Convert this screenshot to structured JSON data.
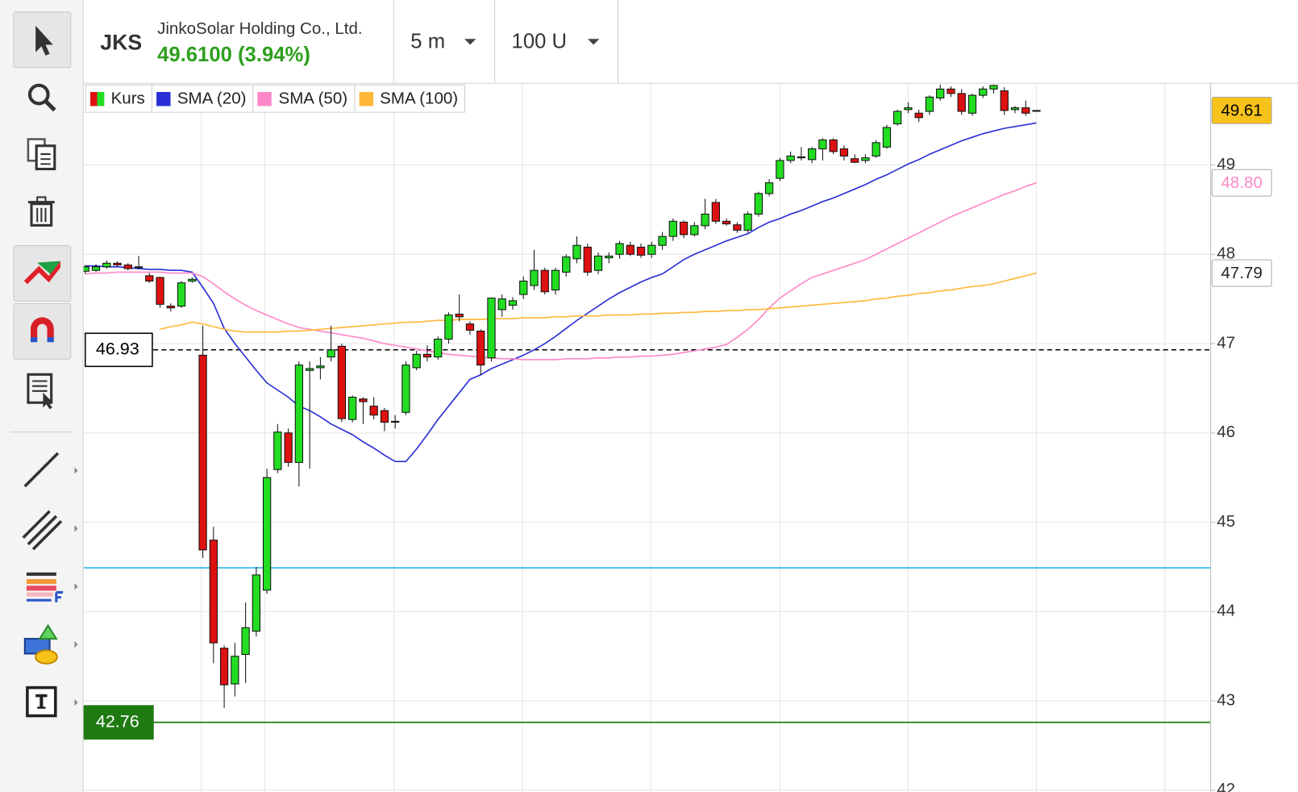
{
  "header": {
    "symbol": "JKS",
    "name": "JinkoSolar Holding Co., Ltd.",
    "quote": "49.6100 (3.94%)",
    "interval": "5 m",
    "range": "100 U"
  },
  "chart_data": {
    "type": "candlestick",
    "ylim": [
      41.98,
      49.91
    ],
    "yticks": [
      42,
      43,
      44,
      45,
      46,
      47,
      48,
      49
    ],
    "grid": true,
    "legend": "top-left",
    "ohlc": {
      "name": "Kurs",
      "up_color": "#22dd22",
      "down_color": "#dd1111",
      "open": [
        47.81,
        47.82,
        47.86,
        47.9,
        47.88,
        47.85,
        47.76,
        47.74,
        47.42,
        47.42,
        47.7,
        46.87,
        44.8,
        43.59,
        43.19,
        43.52,
        43.78,
        44.24,
        45.59,
        46.0,
        45.67,
        46.7,
        46.73,
        46.85,
        46.97,
        46.15,
        46.38,
        46.3,
        46.25,
        46.12,
        46.23,
        46.73,
        46.88,
        46.85,
        47.05,
        47.33,
        47.22,
        47.14,
        46.84,
        47.38,
        47.43,
        47.55,
        47.65,
        47.82,
        47.6,
        47.8,
        47.95,
        48.08,
        47.82,
        47.96,
        48.0,
        48.1,
        48.08,
        48.0,
        48.1,
        48.2,
        48.36,
        48.22,
        48.32,
        48.58,
        48.37,
        48.33,
        48.27,
        48.45,
        48.68,
        48.85,
        49.05,
        49.08,
        49.06,
        49.18,
        49.28,
        49.18,
        49.07,
        49.05,
        49.1,
        49.2,
        49.46,
        49.62,
        49.58,
        49.6,
        49.75,
        49.85,
        49.8,
        49.58,
        49.78,
        49.85,
        49.83,
        49.62,
        49.64,
        49.61
      ],
      "high": [
        47.88,
        47.89,
        47.93,
        47.92,
        47.9,
        47.98,
        47.79,
        47.75,
        47.45,
        47.7,
        47.74,
        47.2,
        44.95,
        43.62,
        43.65,
        44.1,
        44.5,
        45.6,
        46.1,
        46.05,
        46.8,
        46.8,
        46.85,
        47.2,
        47.0,
        46.42,
        46.4,
        46.4,
        46.28,
        46.2,
        46.8,
        46.92,
        46.98,
        47.08,
        47.35,
        47.55,
        47.25,
        47.16,
        47.51,
        47.55,
        47.52,
        47.75,
        48.05,
        47.85,
        47.85,
        48.0,
        48.2,
        48.12,
        48.02,
        48.02,
        48.15,
        48.14,
        48.12,
        48.14,
        48.25,
        48.4,
        48.38,
        48.36,
        48.62,
        48.62,
        48.4,
        48.36,
        48.48,
        48.7,
        48.84,
        49.08,
        49.15,
        49.2,
        49.2,
        49.3,
        49.3,
        49.22,
        49.12,
        49.12,
        49.28,
        49.45,
        49.62,
        49.7,
        49.62,
        49.78,
        49.9,
        49.88,
        49.85,
        49.8,
        49.88,
        49.9,
        49.87,
        49.66,
        49.72,
        49.61
      ],
      "low": [
        47.78,
        47.8,
        47.84,
        47.86,
        47.82,
        47.83,
        47.68,
        47.4,
        47.36,
        47.4,
        47.68,
        44.6,
        43.42,
        42.92,
        43.05,
        43.2,
        43.72,
        44.2,
        45.55,
        45.62,
        45.4,
        45.6,
        46.6,
        46.8,
        46.12,
        46.12,
        46.1,
        46.15,
        46.02,
        46.05,
        46.2,
        46.7,
        46.8,
        46.82,
        47.0,
        47.25,
        47.1,
        46.65,
        46.8,
        47.3,
        47.38,
        47.5,
        47.6,
        47.55,
        47.55,
        47.75,
        47.9,
        47.76,
        47.78,
        47.9,
        47.95,
        47.98,
        47.96,
        47.96,
        48.05,
        48.15,
        48.18,
        48.2,
        48.28,
        48.34,
        48.32,
        48.24,
        48.24,
        48.42,
        48.65,
        48.82,
        49.02,
        49.05,
        49.02,
        49.05,
        49.12,
        49.05,
        49.02,
        49.02,
        49.08,
        49.18,
        49.44,
        49.58,
        49.48,
        49.56,
        49.72,
        49.76,
        49.56,
        49.55,
        49.75,
        49.8,
        49.56,
        49.58,
        49.55,
        49.61
      ],
      "close": [
        47.86,
        47.86,
        47.9,
        47.88,
        47.84,
        47.86,
        47.7,
        47.44,
        47.4,
        47.68,
        47.72,
        44.69,
        43.65,
        43.18,
        43.5,
        43.82,
        44.41,
        45.5,
        46.01,
        45.67,
        46.76,
        46.72,
        46.75,
        46.93,
        46.16,
        46.4,
        46.35,
        46.2,
        46.12,
        46.13,
        46.76,
        46.88,
        46.85,
        47.05,
        47.32,
        47.3,
        47.15,
        46.76,
        47.51,
        47.5,
        47.48,
        47.7,
        47.82,
        47.58,
        47.82,
        47.97,
        48.1,
        47.8,
        47.98,
        47.98,
        48.12,
        48.0,
        47.99,
        48.1,
        48.2,
        48.37,
        48.22,
        48.32,
        48.45,
        48.37,
        48.34,
        48.27,
        48.45,
        48.68,
        48.8,
        49.05,
        49.1,
        49.09,
        49.18,
        49.28,
        49.15,
        49.1,
        49.03,
        49.08,
        49.25,
        49.42,
        49.6,
        49.64,
        49.53,
        49.76,
        49.85,
        49.8,
        49.6,
        49.78,
        49.85,
        49.89,
        49.61,
        49.64,
        49.58,
        49.61
      ]
    },
    "series": [
      {
        "name": "SMA (20)",
        "color": "#2a2fd6",
        "values": [
          47.87,
          47.87,
          47.86,
          47.86,
          47.85,
          47.84,
          47.83,
          47.83,
          47.82,
          47.82,
          47.8,
          47.63,
          47.45,
          47.17,
          47.0,
          46.85,
          46.7,
          46.56,
          46.48,
          46.4,
          46.3,
          46.25,
          46.18,
          46.1,
          46.04,
          45.98,
          45.9,
          45.83,
          45.75,
          45.68,
          45.68,
          45.82,
          45.98,
          46.15,
          46.3,
          46.45,
          46.6,
          46.65,
          46.72,
          46.77,
          46.82,
          46.87,
          46.93,
          47.0,
          47.08,
          47.17,
          47.26,
          47.34,
          47.42,
          47.5,
          47.57,
          47.63,
          47.69,
          47.74,
          47.78,
          47.86,
          47.94,
          48.0,
          48.05,
          48.1,
          48.15,
          48.19,
          48.23,
          48.3,
          48.36,
          48.4,
          48.45,
          48.49,
          48.54,
          48.59,
          48.63,
          48.68,
          48.73,
          48.78,
          48.84,
          48.89,
          48.95,
          49.01,
          49.06,
          49.12,
          49.17,
          49.22,
          49.27,
          49.31,
          49.35,
          49.38,
          49.41,
          49.43,
          49.45,
          49.47
        ]
      },
      {
        "name": "SMA (50)",
        "color": "#ff88c8",
        "values": [
          47.78,
          47.79,
          47.79,
          47.8,
          47.8,
          47.8,
          47.8,
          47.8,
          47.79,
          47.79,
          47.79,
          47.75,
          47.67,
          47.58,
          47.5,
          47.43,
          47.37,
          47.32,
          47.27,
          47.22,
          47.18,
          47.16,
          47.14,
          47.12,
          47.1,
          47.08,
          47.06,
          47.03,
          47.0,
          46.98,
          46.96,
          46.94,
          46.92,
          46.9,
          46.88,
          46.87,
          46.86,
          46.85,
          46.84,
          46.83,
          46.83,
          46.82,
          46.82,
          46.82,
          46.82,
          46.83,
          46.83,
          46.83,
          46.84,
          46.84,
          46.85,
          46.85,
          46.86,
          46.86,
          46.87,
          46.88,
          46.9,
          46.92,
          46.94,
          46.96,
          46.99,
          47.07,
          47.16,
          47.27,
          47.4,
          47.51,
          47.59,
          47.67,
          47.74,
          47.78,
          47.82,
          47.86,
          47.9,
          47.94,
          48.0,
          48.06,
          48.12,
          48.18,
          48.24,
          48.3,
          48.36,
          48.42,
          48.47,
          48.52,
          48.57,
          48.62,
          48.67,
          48.71,
          48.76,
          48.8
        ]
      },
      {
        "name": "SMA (100)",
        "color": "#ffb838",
        "values": [
          null,
          null,
          null,
          null,
          null,
          null,
          null,
          47.16,
          47.19,
          47.21,
          47.24,
          47.22,
          47.19,
          47.16,
          47.14,
          47.13,
          47.13,
          47.13,
          47.13,
          47.14,
          47.14,
          47.15,
          47.16,
          47.17,
          47.18,
          47.19,
          47.2,
          47.21,
          47.22,
          47.23,
          47.24,
          47.24,
          47.25,
          47.26,
          47.26,
          47.27,
          47.27,
          47.27,
          47.28,
          47.28,
          47.28,
          47.29,
          47.29,
          47.29,
          47.3,
          47.3,
          47.31,
          47.31,
          47.31,
          47.32,
          47.32,
          47.32,
          47.33,
          47.33,
          47.34,
          47.34,
          47.35,
          47.35,
          47.36,
          47.36,
          47.37,
          47.37,
          47.38,
          47.38,
          47.39,
          47.4,
          47.41,
          47.42,
          47.43,
          47.44,
          47.45,
          47.46,
          47.47,
          47.48,
          47.5,
          47.51,
          47.53,
          47.54,
          47.56,
          47.57,
          47.59,
          47.6,
          47.62,
          47.64,
          47.65,
          47.67,
          47.7,
          47.73,
          47.76,
          47.79
        ]
      }
    ],
    "price_labels": [
      {
        "value": 49.61,
        "label": "49.61",
        "color": "#000000",
        "fill": "#f7c21a"
      },
      {
        "value": 48.8,
        "label": "48.80",
        "color": "#ff88c8",
        "fill": "#ffffff"
      },
      {
        "value": 47.79,
        "label": "47.79",
        "color": "#222222",
        "fill": "#ffffff"
      }
    ],
    "hlines": [
      {
        "value": 46.93,
        "label": "46.93",
        "color": "#000000",
        "style": "dashed"
      },
      {
        "value": 44.49,
        "color": "#29b8ea",
        "style": "solid"
      },
      {
        "value": 42.76,
        "label": "42.76",
        "color": "#1f7a12",
        "style": "solid"
      }
    ]
  }
}
